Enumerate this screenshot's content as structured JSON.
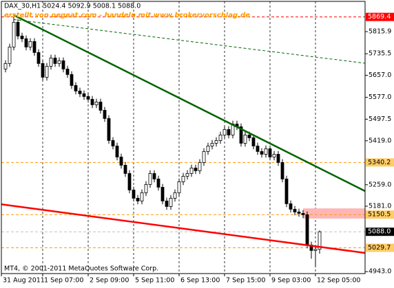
{
  "chart_data": {
    "type": "candlestick",
    "title": "DAX_30,H1  5024.4 5092.9 5008.1 5088.0",
    "subtitle": "erstellt von oegeat.com - handeln mit www.brokervorschlag.de",
    "footer": "MT4, © 2001-2011 MetaQuotes Software Corp.",
    "xlim": [
      -1,
      87
    ],
    "ylim": [
      4936,
      5926
    ],
    "xticks": [
      {
        "value": -1,
        "label": "31 Aug 2011"
      },
      {
        "value": 9,
        "label": "1 Sep 07:00"
      },
      {
        "value": 20,
        "label": "2 Sep 09:00"
      },
      {
        "value": 31,
        "label": "5 Sep 11:00"
      },
      {
        "value": 42,
        "label": "6 Sep 13:00"
      },
      {
        "value": 53,
        "label": "7 Sep 15:00"
      },
      {
        "value": 64,
        "label": "9 Sep 03:00"
      },
      {
        "value": 75,
        "label": "12 Sep 05:00"
      }
    ],
    "yticks": [
      5815.9,
      5735.5,
      {
        "value": 5657,
        "label": "5657.0"
      },
      {
        "value": 5577,
        "label": "5577.0"
      },
      5497.5,
      {
        "value": 5419,
        "label": "5419.0"
      },
      {
        "value": 5259,
        "label": "5259.0"
      },
      {
        "value": 5181,
        "label": "5181.0"
      },
      {
        "value": 4943,
        "label": "4943.0"
      }
    ],
    "levels": [
      {
        "value": 5869.4,
        "color": "#ff0000",
        "label_bg": "#ff0000"
      },
      {
        "value": 5340.2,
        "color": "#ff9900",
        "label_bg": "#ffcc66"
      },
      {
        "value": 5150.5,
        "color": "#ff9900",
        "label_bg": "#ffcc66"
      },
      {
        "value": 5029.7,
        "color": "#ff9900",
        "label_bg": "#ffcc66"
      },
      {
        "value": 5088,
        "label": "5088.0",
        "color": "#c0c0c0",
        "label_bg": "#000000"
      }
    ],
    "trendlines": [
      {
        "x": [
          2,
          87
        ],
        "y": [
          5876,
          5236
        ],
        "color": "#006400",
        "dashed": false
      },
      {
        "x": [
          2,
          87
        ],
        "y": [
          5860,
          5701
        ],
        "color": "#006400",
        "dashed": true
      },
      {
        "x": [
          -1,
          87
        ],
        "y": [
          5188,
          5011
        ],
        "color": "#ff0000",
        "dashed": false
      }
    ],
    "zone": {
      "xlim": [
        72,
        87
      ],
      "ylim": [
        5136,
        5173
      ],
      "color": "#ffb6b6"
    },
    "open": [
      5680,
      5700,
      5760,
      5850,
      5800,
      5790,
      5760,
      5780,
      5740,
      5700,
      5650,
      5690,
      5720,
      5700,
      5710,
      5680,
      5660,
      5620,
      5600,
      5590,
      5580,
      5570,
      5550,
      5560,
      5530,
      5500,
      5420,
      5400,
      5360,
      5330,
      5300,
      5240,
      5210,
      5200,
      5230,
      5260,
      5300,
      5280,
      5250,
      5200,
      5180,
      5210,
      5230,
      5270,
      5290,
      5300,
      5320,
      5310,
      5340,
      5380,
      5400,
      5410,
      5420,
      5440,
      5460,
      5440,
      5480,
      5470,
      5410,
      5440,
      5430,
      5400,
      5380,
      5370,
      5390,
      5360,
      5370,
      5340,
      5280,
      5190,
      5170,
      5160,
      5155,
      5150,
      5040,
      5020,
      5024.4
    ],
    "high": [
      5712,
      5772,
      5869.4,
      5862,
      5812,
      5802,
      5792,
      5792,
      5752,
      5712,
      5702,
      5732,
      5732,
      5722,
      5722,
      5692,
      5672,
      5632,
      5612,
      5602,
      5592,
      5582,
      5572,
      5572,
      5542,
      5512,
      5432,
      5412,
      5372,
      5342,
      5312,
      5252,
      5222,
      5242,
      5272,
      5312,
      5312,
      5292,
      5262,
      5212,
      5222,
      5242,
      5282,
      5302,
      5312,
      5332,
      5332,
      5352,
      5392,
      5412,
      5422,
      5432,
      5452,
      5472,
      5472,
      5492,
      5492,
      5482,
      5452,
      5452,
      5442,
      5412,
      5392,
      5402,
      5402,
      5382,
      5382,
      5352,
      5292,
      5202,
      5182,
      5172,
      5167,
      5162,
      5052,
      5036,
      5092.9
    ],
    "low": [
      5668,
      5688,
      5748,
      5788,
      5778,
      5748,
      5748,
      5728,
      5688,
      5638,
      5638,
      5678,
      5688,
      5688,
      5668,
      5648,
      5608,
      5588,
      5578,
      5568,
      5558,
      5538,
      5538,
      5518,
      5488,
      5408,
      5388,
      5348,
      5318,
      5288,
      5228,
      5198,
      5188,
      5188,
      5218,
      5248,
      5268,
      5238,
      5188,
      5168,
      5168,
      5198,
      5218,
      5258,
      5278,
      5288,
      5298,
      5298,
      5328,
      5368,
      5388,
      5398,
      5408,
      5428,
      5428,
      5428,
      5458,
      5398,
      5398,
      5418,
      5388,
      5368,
      5358,
      5358,
      5348,
      5348,
      5328,
      5268,
      5178,
      5158,
      5148,
      5143,
      5138,
      5028,
      4990,
      4960,
      5008.1
    ],
    "close": [
      5700,
      5760,
      5850,
      5800,
      5790,
      5760,
      5780,
      5740,
      5700,
      5650,
      5690,
      5720,
      5700,
      5710,
      5680,
      5660,
      5620,
      5600,
      5590,
      5580,
      5570,
      5550,
      5560,
      5530,
      5500,
      5420,
      5400,
      5360,
      5330,
      5300,
      5240,
      5210,
      5200,
      5230,
      5260,
      5300,
      5280,
      5250,
      5200,
      5180,
      5210,
      5230,
      5270,
      5290,
      5300,
      5320,
      5310,
      5340,
      5380,
      5400,
      5410,
      5420,
      5440,
      5460,
      5440,
      5480,
      5470,
      5410,
      5440,
      5430,
      5400,
      5380,
      5370,
      5390,
      5360,
      5370,
      5340,
      5280,
      5190,
      5170,
      5160,
      5155,
      5150,
      5040,
      5020,
      5024,
      5088
    ]
  }
}
